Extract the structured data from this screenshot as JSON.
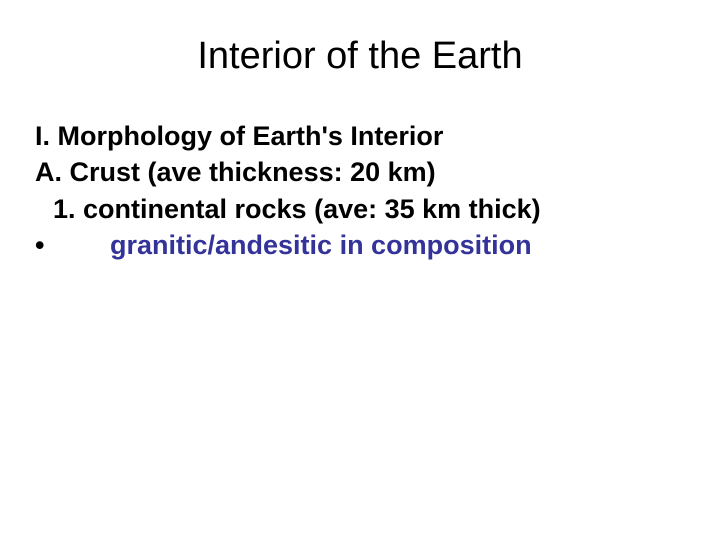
{
  "slide": {
    "title": "Interior of the Earth",
    "title_fontsize": 38,
    "title_color": "#000000",
    "background_color": "#ffffff",
    "content": {
      "line1": "I. Morphology of Earth's Interior",
      "line2": "A. Crust (ave thickness: 20 km)",
      "line3": "1. continental rocks (ave: 35 km thick)",
      "bullet_marker": "•",
      "bullet_text": "granitic/andesitic in composition",
      "body_fontsize": 27,
      "body_color": "#000000",
      "bullet_text_color": "#333399",
      "font_weight": "bold"
    }
  }
}
